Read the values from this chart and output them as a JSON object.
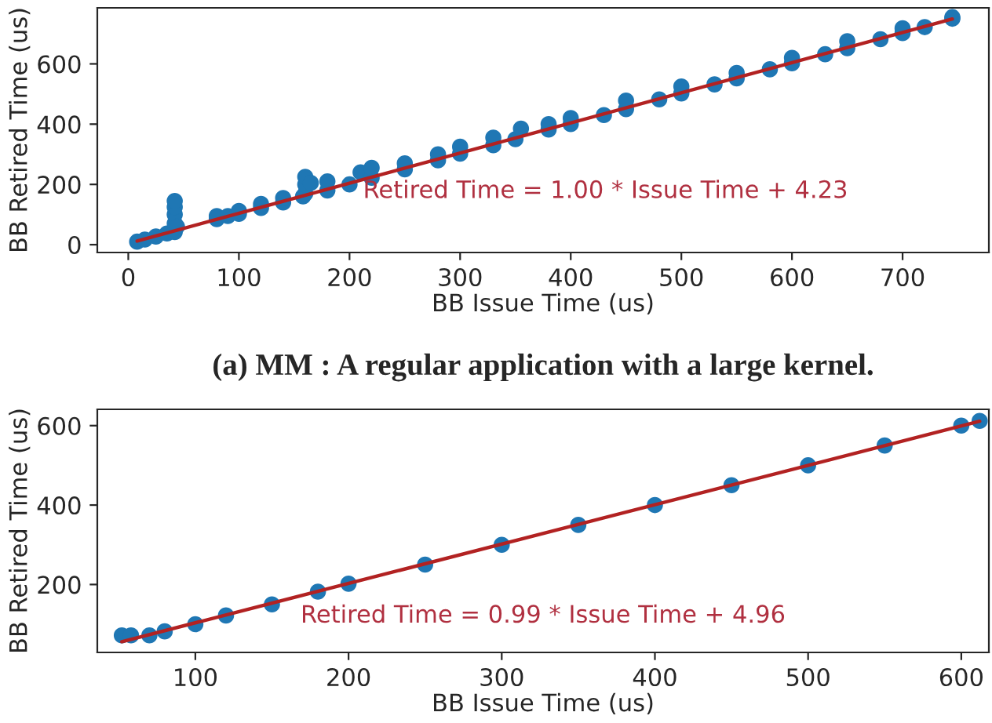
{
  "chart_data": [
    {
      "type": "scatter",
      "xlabel": "BB Issue Time (us)",
      "ylabel": "BB Retired Time (us)",
      "xlim": [
        -28,
        778
      ],
      "ylim": [
        -26,
        786
      ],
      "xticks": [
        0,
        100,
        200,
        300,
        400,
        500,
        600,
        700
      ],
      "yticks": [
        0,
        200,
        400,
        600
      ],
      "grid": false,
      "legend": false,
      "series": [
        {
          "color": "#1f77b4",
          "marker": "circle",
          "x": [
            8,
            15,
            25,
            35,
            42,
            42,
            42,
            42,
            42,
            44,
            80,
            80,
            90,
            100,
            100,
            120,
            120,
            140,
            140,
            158,
            160,
            160,
            160,
            165,
            180,
            180,
            200,
            210,
            220,
            220,
            250,
            250,
            280,
            280,
            300,
            300,
            330,
            330,
            350,
            355,
            380,
            380,
            400,
            400,
            430,
            450,
            450,
            480,
            500,
            500,
            530,
            550,
            550,
            580,
            600,
            600,
            630,
            650,
            650,
            680,
            700,
            700,
            720,
            745,
            745
          ],
          "values": [
            10,
            17,
            27,
            37,
            42,
            70,
            100,
            125,
            145,
            60,
            85,
            95,
            95,
            102,
            112,
            122,
            135,
            140,
            155,
            160,
            170,
            200,
            225,
            205,
            180,
            210,
            200,
            240,
            222,
            255,
            250,
            270,
            280,
            300,
            302,
            325,
            330,
            355,
            350,
            385,
            382,
            400,
            400,
            420,
            430,
            450,
            478,
            482,
            502,
            525,
            532,
            552,
            570,
            582,
            602,
            620,
            632,
            652,
            675,
            682,
            702,
            718,
            722,
            750,
            755
          ]
        },
        {
          "type": "line",
          "color": "#b22222",
          "line_style": "solid",
          "x": [
            8,
            745
          ],
          "values": [
            12,
            749
          ]
        }
      ],
      "annotations": [
        "Retired Time = 1.00 * Issue Time + 4.23",
        "(a) MM : A regular application with a large kernel."
      ]
    },
    {
      "type": "scatter",
      "xlabel": "BB Issue Time (us)",
      "ylabel": "BB Retired Time (us)",
      "xlim": [
        36,
        618
      ],
      "ylim": [
        29,
        641
      ],
      "xticks": [
        100,
        200,
        300,
        400,
        500,
        600
      ],
      "yticks": [
        200,
        400,
        600
      ],
      "grid": false,
      "legend": false,
      "series": [
        {
          "color": "#1f77b4",
          "marker": "circle",
          "x": [
            52,
            58,
            70,
            80,
            100,
            120,
            150,
            180,
            200,
            250,
            300,
            350,
            400,
            450,
            500,
            550,
            600,
            612
          ],
          "values": [
            72,
            72,
            72,
            82,
            100,
            122,
            150,
            182,
            202,
            250,
            300,
            350,
            400,
            450,
            500,
            550,
            600,
            612
          ]
        },
        {
          "type": "line",
          "color": "#b22222",
          "line_style": "solid",
          "x": [
            52,
            612
          ],
          "values": [
            56,
            611
          ]
        }
      ],
      "annotations": [
        "Retired Time = 0.99 * Issue Time + 4.96"
      ]
    }
  ]
}
